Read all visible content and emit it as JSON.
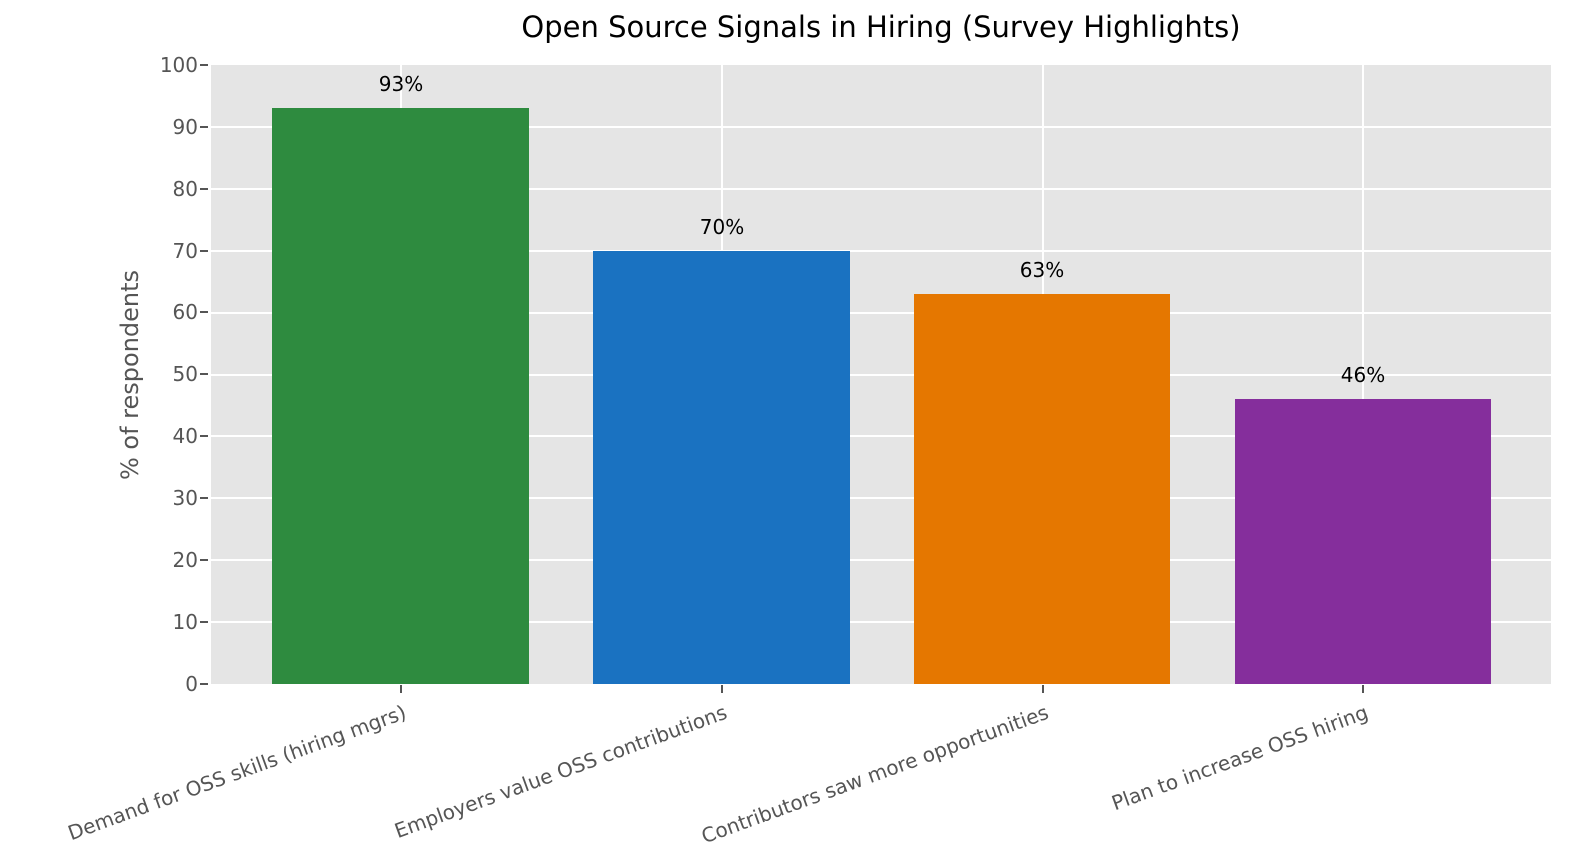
{
  "chart_data": {
    "type": "bar",
    "title": "Open Source Signals in Hiring (Survey Highlights)",
    "xlabel": "",
    "ylabel": "% of respondents",
    "ylim": [
      0,
      100
    ],
    "yticks": [
      0,
      10,
      20,
      30,
      40,
      50,
      60,
      70,
      80,
      90,
      100
    ],
    "grid": true,
    "legend": null,
    "categories": [
      "Demand for OSS skills (hiring mgrs)",
      "Employers value OSS contributions",
      "Contributors saw more opportunities",
      "Plan to increase OSS hiring"
    ],
    "values": [
      93,
      70,
      63,
      46
    ],
    "data_labels": [
      "93%",
      "70%",
      "63%",
      "46%"
    ],
    "colors": [
      "#2e8b3f",
      "#1a72c1",
      "#e57700",
      "#852e9c"
    ]
  },
  "ytick_labels": [
    "0",
    "10",
    "20",
    "30",
    "40",
    "50",
    "60",
    "70",
    "80",
    "90",
    "100"
  ]
}
